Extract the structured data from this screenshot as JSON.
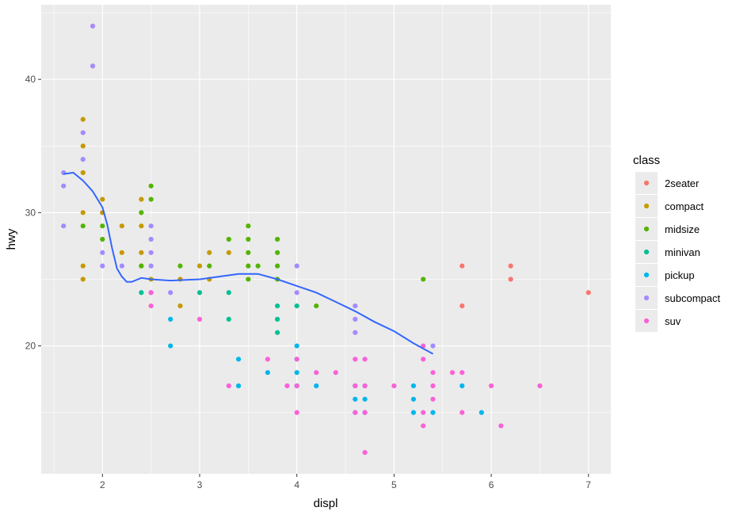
{
  "chart_data": {
    "type": "scatter",
    "xlabel": "displ",
    "ylabel": "hwy",
    "xlim": [
      1.37,
      7.23
    ],
    "ylim": [
      10.4,
      45.6
    ],
    "x_ticks": [
      2,
      3,
      4,
      5,
      6,
      7
    ],
    "y_ticks": [
      20,
      30,
      40
    ],
    "grid": true,
    "legend": {
      "title": "class",
      "position": "right"
    },
    "colors": {
      "2seater": "#F8766D",
      "compact": "#C49A00",
      "midsize": "#53B400",
      "minivan": "#00C094",
      "pickup": "#00B6EB",
      "subcompact": "#A58AFF",
      "suv": "#FB61D7",
      "smooth": "#3366FF",
      "panel": "#EBEBEB"
    },
    "series": [
      {
        "name": "2seater",
        "points": [
          [
            5.7,
            26
          ],
          [
            5.7,
            23
          ],
          [
            6.2,
            26
          ],
          [
            6.2,
            25
          ],
          [
            7.0,
            24
          ]
        ]
      },
      {
        "name": "compact",
        "points": [
          [
            1.8,
            37
          ],
          [
            1.8,
            35
          ],
          [
            1.8,
            33
          ],
          [
            1.8,
            30
          ],
          [
            1.8,
            26
          ],
          [
            1.8,
            25
          ],
          [
            2.0,
            31
          ],
          [
            2.0,
            30
          ],
          [
            2.2,
            29
          ],
          [
            2.2,
            27
          ],
          [
            2.4,
            31
          ],
          [
            2.4,
            29
          ],
          [
            2.4,
            27
          ],
          [
            2.4,
            26
          ],
          [
            2.5,
            25
          ],
          [
            2.8,
            25
          ],
          [
            2.8,
            23
          ],
          [
            3.0,
            26
          ],
          [
            3.1,
            27
          ],
          [
            3.1,
            25
          ],
          [
            3.3,
            27
          ]
        ]
      },
      {
        "name": "midsize",
        "points": [
          [
            1.8,
            29
          ],
          [
            2.0,
            29
          ],
          [
            2.0,
            28
          ],
          [
            2.4,
            30
          ],
          [
            2.4,
            26
          ],
          [
            2.5,
            32
          ],
          [
            2.5,
            31
          ],
          [
            2.8,
            26
          ],
          [
            3.1,
            26
          ],
          [
            3.3,
            28
          ],
          [
            3.5,
            29
          ],
          [
            3.5,
            28
          ],
          [
            3.5,
            27
          ],
          [
            3.5,
            26
          ],
          [
            3.5,
            25
          ],
          [
            3.6,
            26
          ],
          [
            3.8,
            28
          ],
          [
            3.8,
            27
          ],
          [
            3.8,
            26
          ],
          [
            3.8,
            25
          ],
          [
            4.2,
            23
          ],
          [
            5.3,
            25
          ]
        ]
      },
      {
        "name": "minivan",
        "points": [
          [
            2.4,
            24
          ],
          [
            3.0,
            24
          ],
          [
            3.3,
            24
          ],
          [
            3.3,
            22
          ],
          [
            3.8,
            23
          ],
          [
            3.8,
            22
          ],
          [
            3.8,
            21
          ],
          [
            4.0,
            23
          ]
        ]
      },
      {
        "name": "pickup",
        "points": [
          [
            2.7,
            22
          ],
          [
            2.7,
            20
          ],
          [
            3.4,
            19
          ],
          [
            3.4,
            17
          ],
          [
            3.7,
            18
          ],
          [
            4.0,
            20
          ],
          [
            4.0,
            19
          ],
          [
            4.0,
            18
          ],
          [
            4.0,
            17
          ],
          [
            4.2,
            17
          ],
          [
            4.6,
            17
          ],
          [
            4.6,
            16
          ],
          [
            4.6,
            15
          ],
          [
            4.7,
            17
          ],
          [
            4.7,
            16
          ],
          [
            4.7,
            15
          ],
          [
            5.2,
            17
          ],
          [
            5.2,
            16
          ],
          [
            5.2,
            15
          ],
          [
            5.4,
            15
          ],
          [
            5.7,
            17
          ],
          [
            5.9,
            15
          ]
        ]
      },
      {
        "name": "subcompact",
        "points": [
          [
            1.6,
            33
          ],
          [
            1.6,
            32
          ],
          [
            1.6,
            29
          ],
          [
            1.8,
            36
          ],
          [
            1.8,
            34
          ],
          [
            1.9,
            44
          ],
          [
            1.9,
            41
          ],
          [
            2.0,
            27
          ],
          [
            2.0,
            26
          ],
          [
            2.2,
            26
          ],
          [
            2.5,
            29
          ],
          [
            2.5,
            28
          ],
          [
            2.5,
            27
          ],
          [
            2.5,
            26
          ],
          [
            2.5,
            24
          ],
          [
            2.7,
            24
          ],
          [
            4.0,
            26
          ],
          [
            4.0,
            24
          ],
          [
            4.6,
            23
          ],
          [
            4.6,
            22
          ],
          [
            4.6,
            21
          ],
          [
            5.4,
            20
          ]
        ]
      },
      {
        "name": "suv",
        "points": [
          [
            2.5,
            24
          ],
          [
            2.5,
            23
          ],
          [
            3.0,
            22
          ],
          [
            3.3,
            17
          ],
          [
            3.7,
            19
          ],
          [
            3.9,
            17
          ],
          [
            4.0,
            19
          ],
          [
            4.0,
            17
          ],
          [
            4.0,
            15
          ],
          [
            4.2,
            18
          ],
          [
            4.4,
            18
          ],
          [
            4.6,
            19
          ],
          [
            4.6,
            17
          ],
          [
            4.6,
            15
          ],
          [
            4.7,
            19
          ],
          [
            4.7,
            17
          ],
          [
            4.7,
            15
          ],
          [
            4.7,
            12
          ],
          [
            5.0,
            17
          ],
          [
            5.3,
            20
          ],
          [
            5.3,
            19
          ],
          [
            5.3,
            15
          ],
          [
            5.3,
            14
          ],
          [
            5.4,
            18
          ],
          [
            5.4,
            17
          ],
          [
            5.4,
            16
          ],
          [
            5.6,
            18
          ],
          [
            5.7,
            18
          ],
          [
            5.7,
            15
          ],
          [
            6.0,
            17
          ],
          [
            6.1,
            14
          ],
          [
            6.5,
            17
          ]
        ]
      }
    ],
    "smooth": [
      [
        1.6,
        32.9
      ],
      [
        1.7,
        33.0
      ],
      [
        1.8,
        32.4
      ],
      [
        1.9,
        31.6
      ],
      [
        2.0,
        30.4
      ],
      [
        2.05,
        29.1
      ],
      [
        2.1,
        27.3
      ],
      [
        2.15,
        25.8
      ],
      [
        2.2,
        25.2
      ],
      [
        2.25,
        24.8
      ],
      [
        2.3,
        24.8
      ],
      [
        2.4,
        25.1
      ],
      [
        2.5,
        25.0
      ],
      [
        2.7,
        24.9
      ],
      [
        3.0,
        25.0
      ],
      [
        3.2,
        25.2
      ],
      [
        3.4,
        25.4
      ],
      [
        3.6,
        25.4
      ],
      [
        3.8,
        25.0
      ],
      [
        4.0,
        24.5
      ],
      [
        4.2,
        24.0
      ],
      [
        4.4,
        23.3
      ],
      [
        4.6,
        22.6
      ],
      [
        4.8,
        21.8
      ],
      [
        5.0,
        21.1
      ],
      [
        5.2,
        20.2
      ],
      [
        5.4,
        19.4
      ]
    ]
  }
}
